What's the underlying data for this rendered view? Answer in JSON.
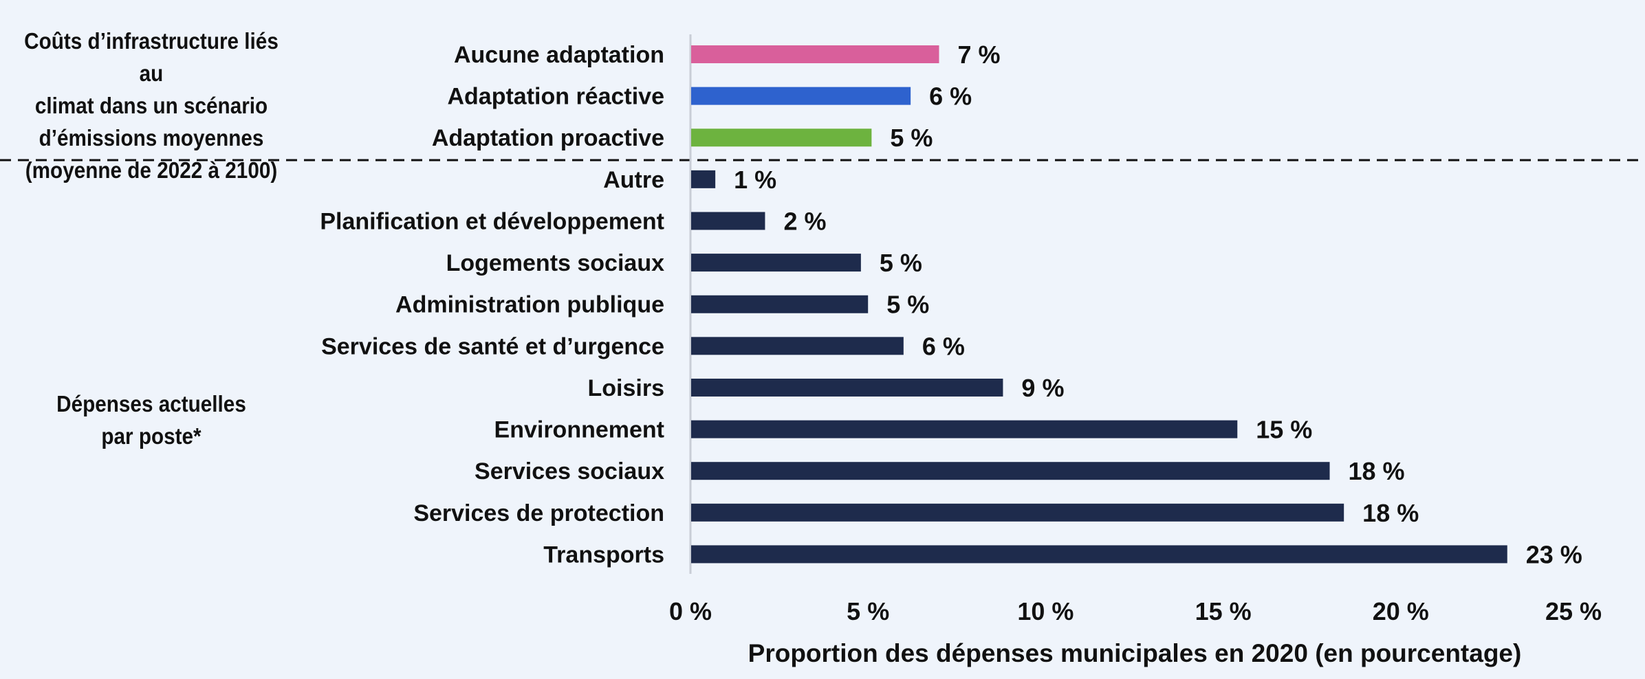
{
  "chart_data": {
    "type": "bar",
    "orientation": "horizontal",
    "groups": [
      {
        "label": "Coûts d’infrastructure liés au climat dans un scénario d’émissions moyennes (moyenne de 2022 à 2100)",
        "label_lines": [
          "Coûts d’infrastructure liés au",
          "climat dans un scénario",
          "d’émissions moyennes",
          "(moyenne de 2022 à 2100)"
        ],
        "categories": [
          "Aucune adaptation",
          "Adaptation réactive",
          "Adaptation proactive"
        ],
        "values": [
          7.0,
          6.2,
          5.1
        ],
        "data_labels": [
          "7 %",
          "6 %",
          "5 %"
        ],
        "colors": [
          "#D95F9B",
          "#2E62CE",
          "#6DB33F"
        ]
      },
      {
        "label": "Dépenses actuelles par poste*",
        "label_lines": [
          "Dépenses actuelles",
          "par poste*"
        ],
        "categories": [
          "Autre",
          "Planification et développement",
          "Logements sociaux",
          "Administration publique",
          "Services de santé et d’urgence",
          "Loisirs",
          "Environnement",
          "Services sociaux",
          "Services de protection",
          "Transports"
        ],
        "values": [
          0.7,
          2.1,
          4.8,
          5.0,
          6.0,
          8.8,
          15.4,
          18.0,
          18.4,
          23.0
        ],
        "data_labels": [
          "1 %",
          "2 %",
          "5 %",
          "5 %",
          "6 %",
          "9 %",
          "15 %",
          "18 %",
          "18 %",
          "23 %"
        ],
        "colors": [
          "#1E2B4C"
        ]
      }
    ],
    "xlabel": "Proportion des dépenses municipales en 2020 (en pourcentage)",
    "xlim": [
      0,
      25
    ],
    "xticks": [
      0,
      5,
      10,
      15,
      20,
      25
    ],
    "xtick_labels": [
      "0 %",
      "5 %",
      "10 %",
      "15 %",
      "20 %",
      "25 %"
    ],
    "grid": false,
    "legend": "none",
    "separator": "dashed line between groups",
    "colors": {
      "background": "#EFF4FB",
      "axis_line": "#C8CDD6",
      "text": "#111111"
    }
  }
}
